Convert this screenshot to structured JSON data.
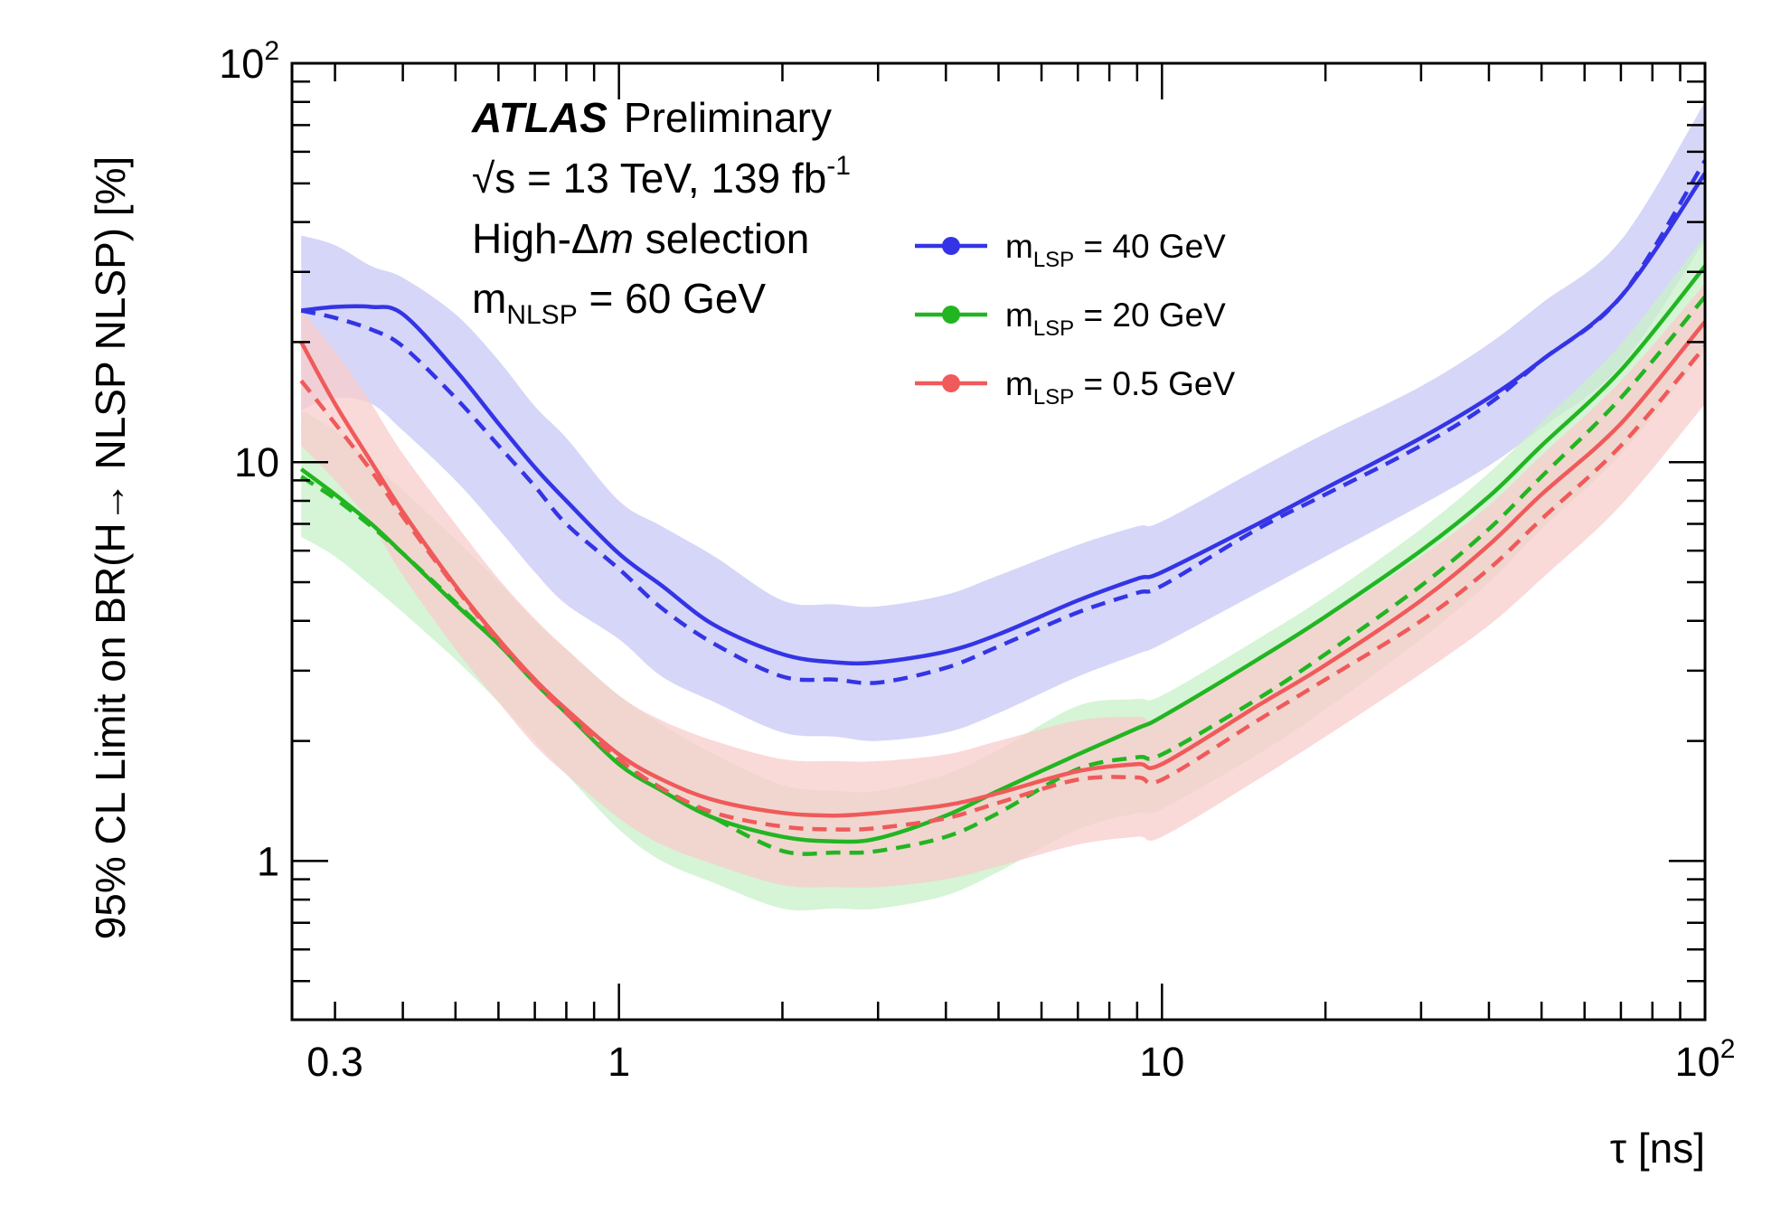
{
  "chart_data": {
    "type": "line",
    "title": "",
    "xlabel": "τ [ns]",
    "ylabel": "95% CL Limit on BR(H→ NLSP NLSP) [%]",
    "xscale": "log",
    "yscale": "log",
    "xlim": [
      0.25,
      100
    ],
    "ylim": [
      0.4,
      100
    ],
    "x_ticks": [
      {
        "value": 0.3,
        "label": "0.3"
      },
      {
        "value": 1,
        "label": "1"
      },
      {
        "value": 10,
        "label": "10"
      },
      {
        "value": 100,
        "label": "10",
        "sup": "2"
      }
    ],
    "y_ticks": [
      {
        "value": 1,
        "label": "1"
      },
      {
        "value": 10,
        "label": "10"
      },
      {
        "value": 100,
        "label": "10",
        "sup": "2"
      }
    ],
    "annotations": {
      "experiment": "ATLAS",
      "status": "Preliminary",
      "energy_prefix": "√s = 13 TeV, 139 fb",
      "energy_sup": "-1",
      "selection_prefix": "High-Δ",
      "selection_italic": "m",
      "selection_suffix": " selection",
      "nlsp_prefix": "m",
      "nlsp_sub": "NLSP",
      "nlsp_suffix": " = 60 GeV"
    },
    "legend_position": "top-center",
    "series": [
      {
        "name": "m_LSP = 40 GeV",
        "legend_main": "m",
        "legend_sub": "LSP",
        "legend_value": " = 40 GeV",
        "color": "#3434e6",
        "band_color": "#c8c8f5",
        "x": [
          0.26,
          0.3,
          0.35,
          0.4,
          0.5,
          0.6,
          0.7,
          0.8,
          1.0,
          1.2,
          1.5,
          2.0,
          2.5,
          3.0,
          4.0,
          5.0,
          7.0,
          9.0,
          10,
          15,
          20,
          30,
          40,
          50,
          70,
          100
        ],
        "observed": [
          24,
          24.5,
          24.5,
          23.5,
          17,
          12.5,
          9.7,
          8.0,
          5.9,
          4.9,
          3.9,
          3.3,
          3.15,
          3.15,
          3.35,
          3.7,
          4.5,
          5.1,
          5.3,
          7.0,
          8.6,
          11.5,
          14.5,
          18.0,
          26.0,
          53.0
        ],
        "expected": [
          24,
          23,
          21.5,
          19.5,
          14.5,
          11.0,
          8.7,
          7.0,
          5.4,
          4.3,
          3.5,
          2.9,
          2.85,
          2.8,
          3.05,
          3.45,
          4.2,
          4.7,
          4.9,
          6.8,
          8.3,
          11.0,
          14.0,
          18.0,
          26.0,
          57.0
        ],
        "band_low": [
          13.5,
          14.5,
          14.0,
          12.0,
          9.0,
          6.8,
          5.3,
          4.4,
          3.6,
          2.9,
          2.5,
          2.1,
          2.05,
          2.0,
          2.1,
          2.35,
          2.9,
          3.3,
          3.5,
          4.7,
          5.8,
          7.8,
          9.8,
          12.2,
          17.5,
          36.0
        ],
        "band_high": [
          37,
          35,
          31,
          29,
          23.5,
          18.0,
          13.8,
          11.5,
          8.0,
          6.9,
          5.8,
          4.5,
          4.4,
          4.35,
          4.65,
          5.2,
          6.2,
          6.9,
          7.1,
          9.6,
          11.8,
          15.5,
          19.8,
          25.0,
          36.0,
          80.0
        ]
      },
      {
        "name": "m_LSP = 20 GeV",
        "legend_main": "m",
        "legend_sub": "LSP",
        "legend_value": " = 20 GeV",
        "color": "#22b522",
        "band_color": "#c8f0c8",
        "x": [
          0.26,
          0.3,
          0.35,
          0.4,
          0.5,
          0.6,
          0.7,
          0.8,
          1.0,
          1.2,
          1.5,
          2.0,
          2.5,
          3.0,
          4.0,
          5.0,
          7.0,
          9.0,
          10,
          15,
          20,
          30,
          40,
          50,
          70,
          100
        ],
        "observed": [
          9.6,
          8.3,
          7.0,
          5.9,
          4.4,
          3.5,
          2.8,
          2.35,
          1.75,
          1.5,
          1.28,
          1.15,
          1.12,
          1.14,
          1.3,
          1.5,
          1.85,
          2.15,
          2.3,
          3.2,
          4.1,
          6.0,
          8.2,
          11.0,
          17.0,
          31.0
        ],
        "expected": [
          9.2,
          8.1,
          6.9,
          5.9,
          4.45,
          3.5,
          2.82,
          2.35,
          1.78,
          1.52,
          1.28,
          1.06,
          1.05,
          1.06,
          1.15,
          1.32,
          1.7,
          1.82,
          1.85,
          2.55,
          3.3,
          4.9,
          6.8,
          9.2,
          14.5,
          26.0
        ],
        "band_low": [
          6.5,
          5.8,
          4.9,
          4.2,
          3.2,
          2.5,
          2.0,
          1.65,
          1.2,
          1.0,
          0.88,
          0.76,
          0.76,
          0.76,
          0.82,
          0.94,
          1.2,
          1.32,
          1.35,
          1.85,
          2.4,
          3.6,
          5.0,
          6.8,
          10.5,
          19.0
        ],
        "band_high": [
          13.5,
          12.0,
          10.0,
          8.5,
          6.4,
          5.0,
          4.0,
          3.4,
          2.6,
          2.2,
          1.85,
          1.55,
          1.5,
          1.5,
          1.65,
          1.9,
          2.45,
          2.55,
          2.6,
          3.6,
          4.6,
          6.8,
          9.4,
          12.6,
          19.8,
          37.0
        ]
      },
      {
        "name": "m_LSP = 0.5 GeV",
        "legend_main": "m",
        "legend_sub": "LSP",
        "legend_value": " = 0.5 GeV",
        "color": "#f05a5a",
        "band_color": "#f8cccc",
        "x": [
          0.26,
          0.3,
          0.35,
          0.4,
          0.5,
          0.6,
          0.7,
          0.8,
          1.0,
          1.2,
          1.5,
          2.0,
          2.5,
          3.0,
          4.0,
          5.0,
          7.0,
          9.0,
          10,
          15,
          20,
          30,
          40,
          50,
          70,
          100
        ],
        "observed": [
          20,
          14.0,
          10.0,
          7.5,
          4.9,
          3.6,
          2.85,
          2.4,
          1.85,
          1.6,
          1.42,
          1.32,
          1.3,
          1.32,
          1.38,
          1.48,
          1.68,
          1.75,
          1.75,
          2.45,
          3.1,
          4.5,
          6.2,
          8.3,
          12.5,
          22.5
        ],
        "expected": [
          16.0,
          12.5,
          9.5,
          7.3,
          4.85,
          3.55,
          2.8,
          2.35,
          1.8,
          1.52,
          1.32,
          1.22,
          1.2,
          1.21,
          1.28,
          1.4,
          1.6,
          1.62,
          1.6,
          2.25,
          2.85,
          4.0,
          5.4,
          7.2,
          11.0,
          19.5
        ],
        "band_low": [
          11.0,
          9.0,
          7.0,
          5.2,
          3.4,
          2.5,
          1.95,
          1.65,
          1.28,
          1.1,
          0.98,
          0.87,
          0.86,
          0.86,
          0.9,
          0.97,
          1.1,
          1.15,
          1.15,
          1.6,
          2.05,
          2.95,
          3.9,
          5.1,
          7.8,
          14.0
        ],
        "band_high": [
          24.0,
          19.0,
          14.0,
          10.5,
          7.0,
          5.1,
          4.05,
          3.4,
          2.6,
          2.25,
          2.0,
          1.8,
          1.78,
          1.78,
          1.85,
          2.0,
          2.25,
          2.3,
          2.3,
          3.2,
          4.05,
          5.8,
          7.8,
          10.4,
          16.0,
          28.0
        ]
      }
    ]
  }
}
